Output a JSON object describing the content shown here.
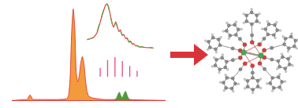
{
  "chart_data": [
    {
      "type": "area",
      "xlim": [
        0,
        100
      ],
      "ylim": [
        0,
        105
      ],
      "tick_labels": false,
      "grid": false,
      "series": [
        {
          "color": "#f39a3c",
          "x": [
            0,
            5,
            8,
            10,
            11,
            12,
            13,
            14,
            15,
            20,
            30,
            36,
            37,
            38,
            39,
            40,
            41,
            42,
            43,
            44,
            45,
            46,
            47,
            48,
            49,
            50,
            52,
            55,
            60,
            65,
            75,
            85,
            100
          ],
          "values": [
            0,
            0.5,
            1,
            1,
            4,
            6,
            3,
            1,
            1,
            1,
            1,
            2,
            6,
            25,
            75,
            100,
            80,
            30,
            20,
            28,
            42,
            48,
            40,
            22,
            10,
            5,
            3,
            2,
            1,
            1,
            1,
            0.5,
            0
          ]
        },
        {
          "color": "#4f9a3a",
          "x": [
            66,
            68,
            69,
            70,
            71,
            72,
            73,
            74,
            75,
            76,
            77,
            79
          ],
          "values": [
            0,
            2,
            6,
            9,
            5,
            3,
            7,
            10,
            6,
            2,
            1,
            0
          ]
        }
      ]
    },
    {
      "type": "line",
      "xlim": [
        0,
        100
      ],
      "ylim": [
        0,
        105
      ],
      "tick_labels": false,
      "grid": false,
      "x": [
        0,
        5,
        10,
        15,
        20,
        25,
        28,
        30,
        32,
        35,
        38,
        40,
        43,
        45,
        48,
        50,
        53,
        55,
        58,
        60,
        63,
        65,
        68,
        70,
        73,
        75,
        78,
        80,
        85,
        90,
        95,
        100
      ],
      "series": [
        {
          "color": "#e03c3c",
          "line_style": "solid",
          "values": [
            20,
            22,
            25,
            35,
            60,
            85,
            97,
            100,
            95,
            75,
            55,
            48,
            60,
            52,
            38,
            42,
            30,
            32,
            22,
            24,
            15,
            17,
            10,
            11,
            6,
            7,
            4,
            4,
            3,
            2,
            2,
            1
          ]
        },
        {
          "color": "#5aaa3c",
          "line_style": "dash",
          "values": [
            20,
            22,
            26,
            38,
            62,
            87,
            98,
            99,
            93,
            73,
            55,
            47,
            58,
            50,
            37,
            40,
            29,
            31,
            21,
            23,
            14,
            16,
            9,
            10,
            6,
            6,
            4,
            4,
            3,
            2,
            2,
            1
          ]
        }
      ]
    },
    {
      "type": "bar",
      "xlim": [
        0,
        95
      ],
      "ylim": [
        0,
        105
      ],
      "tick_labels": false,
      "grid": false,
      "x": [
        10,
        25,
        40,
        55,
        70,
        85
      ],
      "values": [
        45,
        85,
        100,
        80,
        55,
        30
      ],
      "color": "#e75480"
    }
  ]
}
